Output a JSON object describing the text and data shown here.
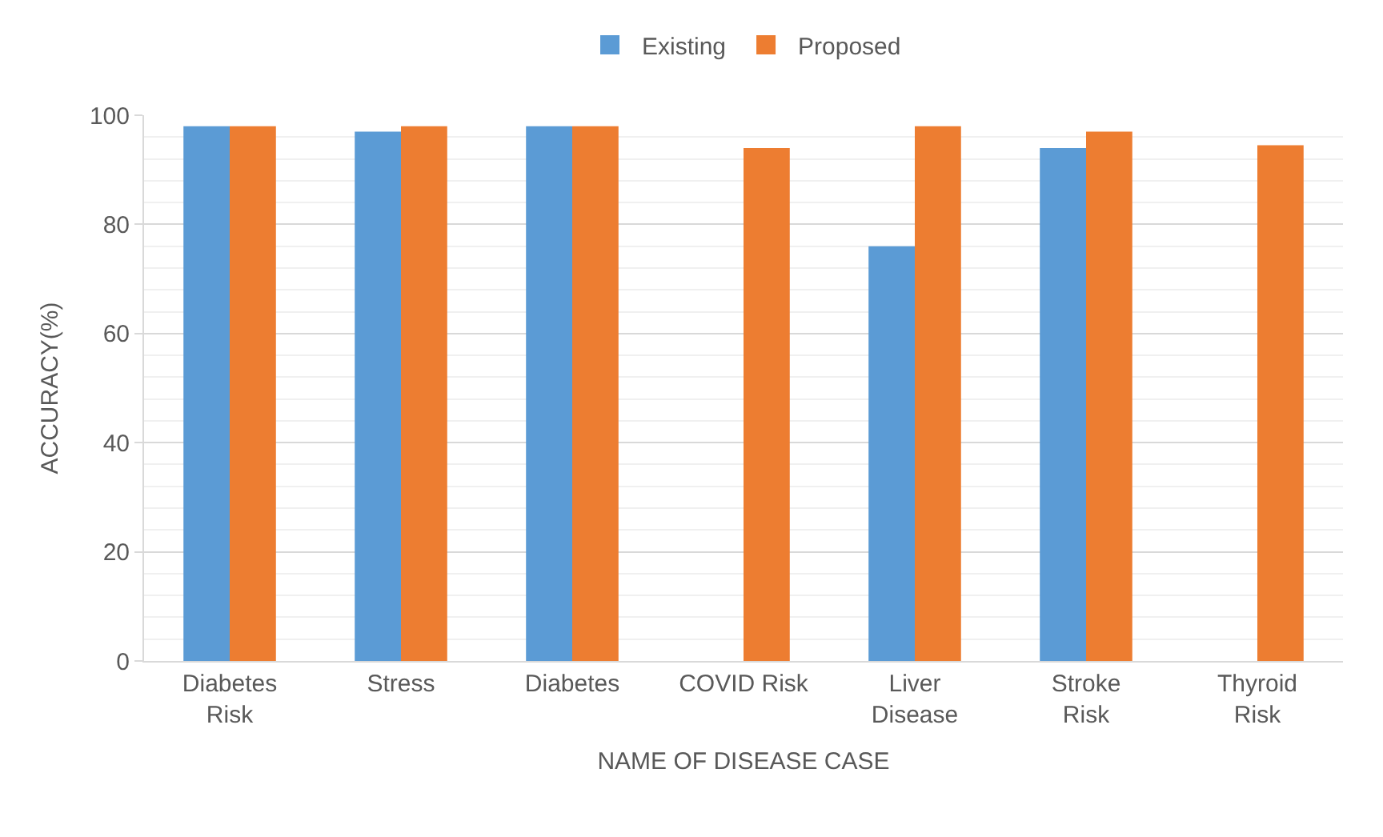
{
  "chart_data": {
    "type": "bar",
    "xlabel": "NAME OF DISEASE CASE",
    "ylabel": "ACCURACY(%)",
    "categories": [
      "Diabetes Risk",
      "Stress",
      "Diabetes",
      "COVID Risk",
      "Liver Disease",
      "Stroke Risk",
      "Thyroid Risk"
    ],
    "series": [
      {
        "name": "Existing",
        "color": "#5b9bd5",
        "values": [
          98,
          97,
          98,
          null,
          76,
          94,
          null
        ]
      },
      {
        "name": "Proposed",
        "color": "#ed7d31",
        "values": [
          98,
          98,
          98,
          94,
          98,
          97,
          94.5
        ]
      }
    ],
    "ylim": [
      0,
      100
    ],
    "yticks": [
      0,
      20,
      40,
      60,
      80,
      100
    ],
    "grid": "y",
    "legend": "top"
  }
}
